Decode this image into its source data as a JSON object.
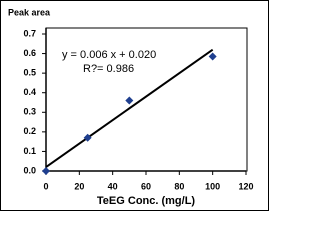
{
  "chart_data": {
    "type": "scatter",
    "y_label": "Peak area",
    "x_label": "TeEG Conc. (mg/L)",
    "series": [
      {
        "color": "#1f3f8f",
        "x": [
          0,
          25,
          50,
          100
        ],
        "values": [
          0.0,
          0.17,
          0.36,
          0.585
        ]
      }
    ],
    "trendline": {
      "slope": 0.006,
      "intercept": 0.02,
      "color": "#000000"
    },
    "annotations": [
      "y = 0.006 x + 0.020",
      "R?= 0.986"
    ],
    "xlim": [
      0,
      120
    ],
    "xticks": [
      0,
      20,
      40,
      60,
      80,
      100,
      120
    ],
    "ylim": [
      0,
      0.7
    ],
    "yticks": [
      {
        "value": 0,
        "label": "0.0"
      },
      0.1,
      0.2,
      0.3,
      0.4,
      0.5,
      0.6,
      0.7
    ]
  }
}
